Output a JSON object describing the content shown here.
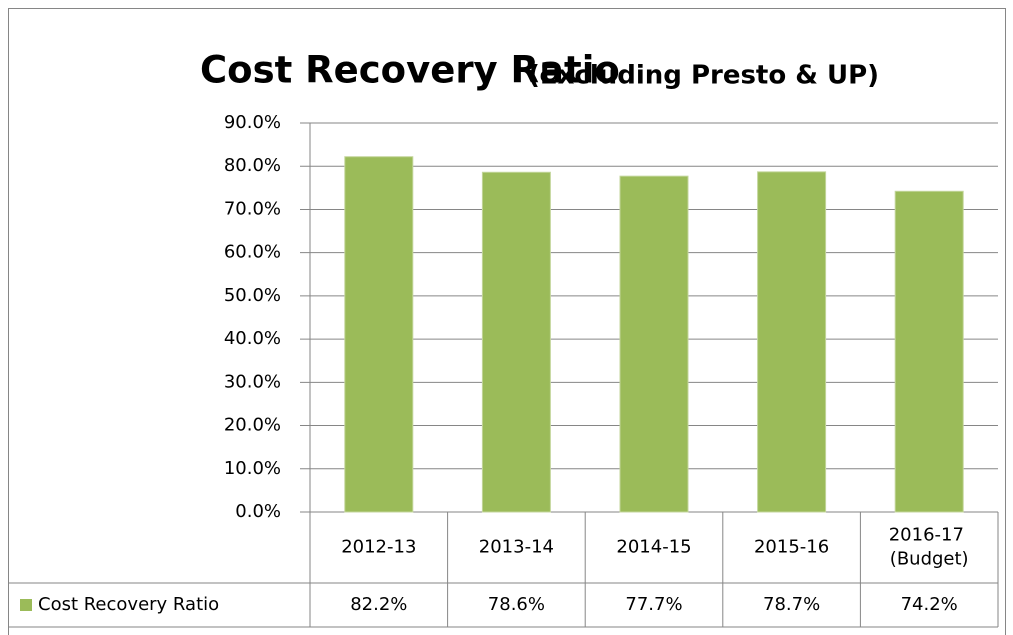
{
  "chart_data": {
    "type": "bar",
    "title": "Cost Recovery Ratio",
    "subtitle": "(Excluding Presto & UP)",
    "categories": [
      "2012-13",
      "2013-14",
      "2014-15",
      "2015-16",
      "2016-17 (Budget)"
    ],
    "series": [
      {
        "name": "Cost Recovery Ratio",
        "color": "#9bbb59",
        "values": [
          82.2,
          78.6,
          77.7,
          78.7,
          74.2
        ],
        "value_labels": [
          "82.2%",
          "78.6%",
          "77.7%",
          "78.7%",
          "74.2%"
        ]
      }
    ],
    "ylim": [
      0,
      90
    ],
    "yticks": [
      {
        "value": 0,
        "label": "0.0%"
      },
      {
        "value": 10,
        "label": "10.0%"
      },
      {
        "value": 20,
        "label": "20.0%"
      },
      {
        "value": 30,
        "label": "30.0%"
      },
      {
        "value": 40,
        "label": "40.0%"
      },
      {
        "value": 50,
        "label": "50.0%"
      },
      {
        "value": 60,
        "label": "60.0%"
      },
      {
        "value": 70,
        "label": "70.0%"
      },
      {
        "value": 80,
        "label": "80.0%"
      },
      {
        "value": 90,
        "label": "90.0%"
      }
    ],
    "grid": true
  }
}
